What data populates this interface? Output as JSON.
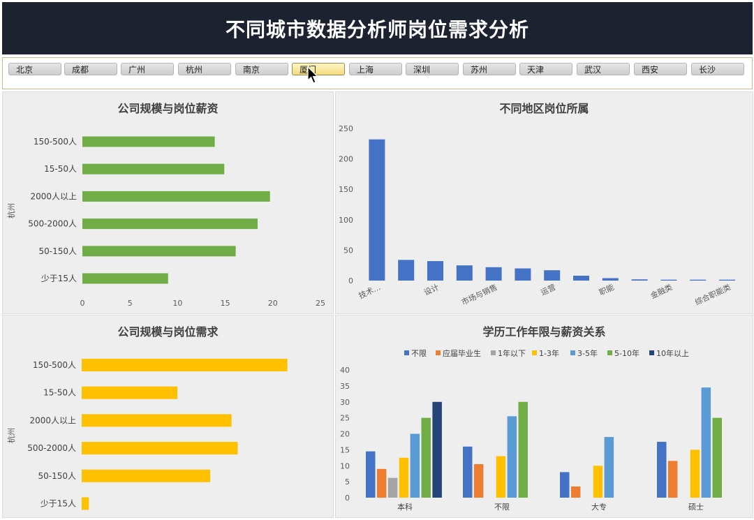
{
  "page_title": "不同城市数据分析师岗位需求分析",
  "cities": [
    "北京",
    "成都",
    "广州",
    "杭州",
    "南京",
    "厦门",
    "上海",
    "深圳",
    "苏州",
    "天津",
    "武汉",
    "西安",
    "长沙"
  ],
  "selected_city": "厦门",
  "chart_data": [
    {
      "type": "bar",
      "orientation": "horizontal",
      "title": "公司规模与岗位薪资",
      "ylabel": "杭州",
      "categories": [
        "150-500人",
        "15-50人",
        "2000人以上",
        "500-2000人",
        "50-150人",
        "少于15人"
      ],
      "values": [
        13.9,
        14.9,
        19.7,
        18.4,
        16.1,
        9
      ],
      "xlim": [
        0,
        25
      ],
      "xticks": [
        "0",
        "5",
        "10",
        "15",
        "20",
        "25"
      ],
      "color": "#70ad47"
    },
    {
      "type": "bar",
      "title": "不同地区岗位所属",
      "categories": [
        "技术…",
        "",
        "设计",
        "",
        "市场与销售",
        "",
        "运营",
        "",
        "职能",
        "",
        "金融类",
        "",
        "综合职能类"
      ],
      "values": [
        232,
        34,
        32,
        25,
        22,
        20,
        17,
        8,
        4,
        2,
        1.5,
        1.5,
        1.5
      ],
      "ylim": [
        0,
        250
      ],
      "yticks": [
        "0",
        "50",
        "100",
        "150",
        "200",
        "250"
      ],
      "color": "#4472c4"
    },
    {
      "type": "bar",
      "orientation": "horizontal",
      "title": "公司规模与岗位需求",
      "ylabel": "杭州",
      "categories": [
        "150-500人",
        "15-50人",
        "2000人以上",
        "500-2000人",
        "50-150人",
        "少于15人"
      ],
      "values": [
        232,
        108,
        169,
        176,
        145,
        8
      ],
      "xlim": [
        0,
        300
      ],
      "color": "#ffc000"
    },
    {
      "type": "bar",
      "title": "学历工作年限与薪资关系",
      "categories": [
        "本科",
        "不限",
        "大专",
        "硕士"
      ],
      "ylim": [
        0,
        40
      ],
      "yticks": [
        "0",
        "5",
        "10",
        "15",
        "20",
        "25",
        "30",
        "35",
        "40"
      ],
      "legend_position": "top",
      "series": [
        {
          "name": "不限",
          "color": "#4472c4",
          "values": [
            14.5,
            16,
            8,
            17.5
          ]
        },
        {
          "name": "应届毕业生",
          "color": "#ed7d31",
          "values": [
            9,
            10.5,
            3.5,
            11.5
          ]
        },
        {
          "name": "1年以下",
          "color": "#a5a5a5",
          "values": [
            6.2,
            null,
            null,
            null
          ]
        },
        {
          "name": "1-3年",
          "color": "#ffc000",
          "values": [
            12.5,
            13,
            10,
            15
          ]
        },
        {
          "name": "3-5年",
          "color": "#5b9bd5",
          "values": [
            20,
            25.5,
            19,
            34.5
          ]
        },
        {
          "name": "5-10年",
          "color": "#70ad47",
          "values": [
            25,
            30,
            null,
            25
          ]
        },
        {
          "name": "10年以上",
          "color": "#264478",
          "values": [
            30,
            null,
            null,
            null
          ]
        }
      ]
    }
  ]
}
